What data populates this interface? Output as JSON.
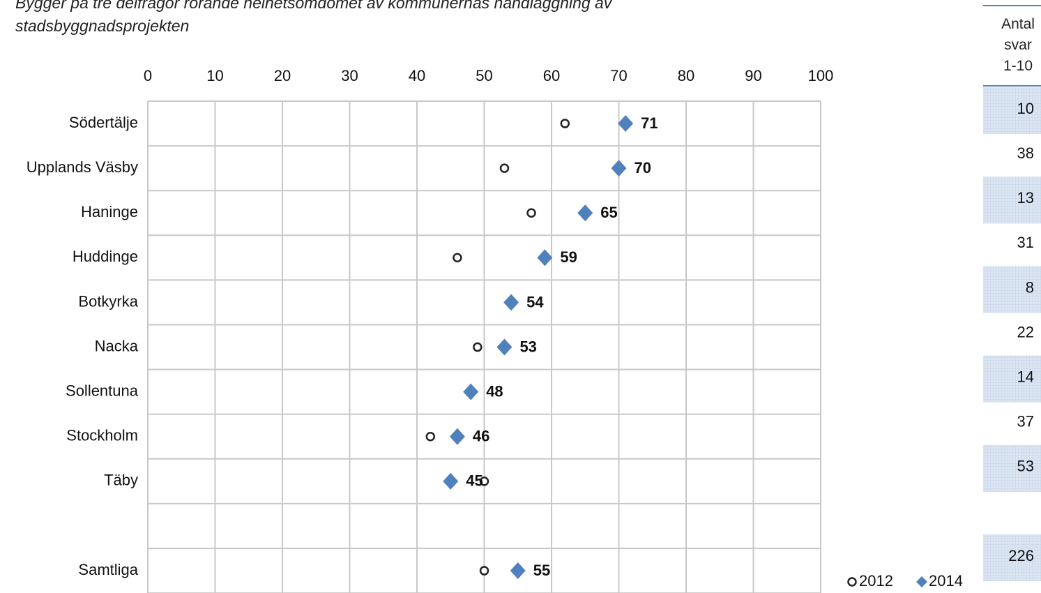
{
  "chart_data": {
    "type": "dotplot",
    "title": "Bygger på tre delfrågor rörande helhetsomdömet av kommunernas handläggning av stadsbyggnadsprojekten",
    "categories": [
      "Södertälje",
      "Upplands Väsby",
      "Haninge",
      "Huddinge",
      "Botkyrka",
      "Nacka",
      "Sollentuna",
      "Stockholm",
      "Täby",
      null,
      "Samtliga"
    ],
    "series": [
      {
        "name": "2012",
        "color": "#222222",
        "values": [
          62,
          53,
          57,
          46,
          null,
          49,
          48,
          42,
          50,
          null,
          50
        ]
      },
      {
        "name": "2014",
        "color": "#4f81bd",
        "values": [
          71,
          70,
          65,
          59,
          54,
          53,
          48,
          46,
          45,
          null,
          55
        ]
      }
    ],
    "xlim": [
      0,
      100
    ],
    "xticks": [
      0,
      10,
      20,
      30,
      40,
      50,
      60,
      70,
      80,
      90,
      100
    ],
    "grid": true,
    "legend": "bottom-right"
  },
  "table": {
    "header": "Antal svar 1-10",
    "rows": [
      10,
      38,
      13,
      31,
      8,
      22,
      14,
      37,
      53,
      null,
      226
    ]
  }
}
